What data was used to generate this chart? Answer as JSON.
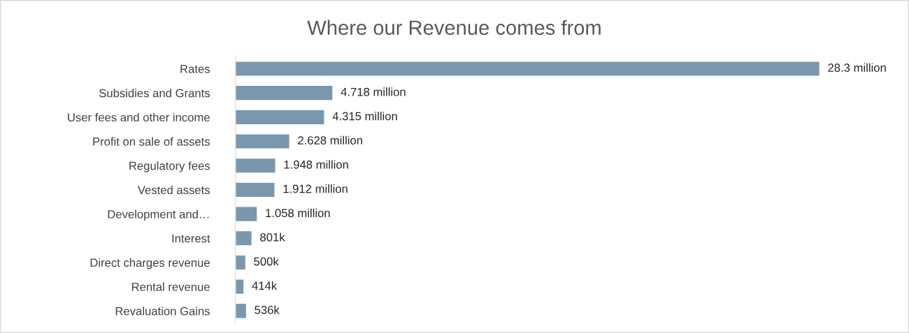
{
  "chart_data": {
    "type": "bar",
    "orientation": "horizontal",
    "title": "Where our Revenue comes from",
    "categories": [
      "Rates",
      "Subsidies and Grants",
      "User fees and other income",
      "Profit on sale of assets",
      "Regulatory fees",
      "Vested assets",
      "Development and…",
      "Interest",
      "Direct charges revenue",
      "Rental revenue",
      "Revaluation Gains"
    ],
    "values": [
      28300000,
      4718000,
      4315000,
      2628000,
      1948000,
      1912000,
      1058000,
      801000,
      500000,
      414000,
      536000
    ],
    "value_labels": [
      "28.3 million",
      "4.718 million",
      "4.315 million",
      "2.628 million",
      "1.948 million",
      "1.912 million",
      "1.058 million",
      "801k",
      "500k",
      "414k",
      "536k"
    ],
    "color": "#7a97ae",
    "grid": false,
    "legend": false
  }
}
